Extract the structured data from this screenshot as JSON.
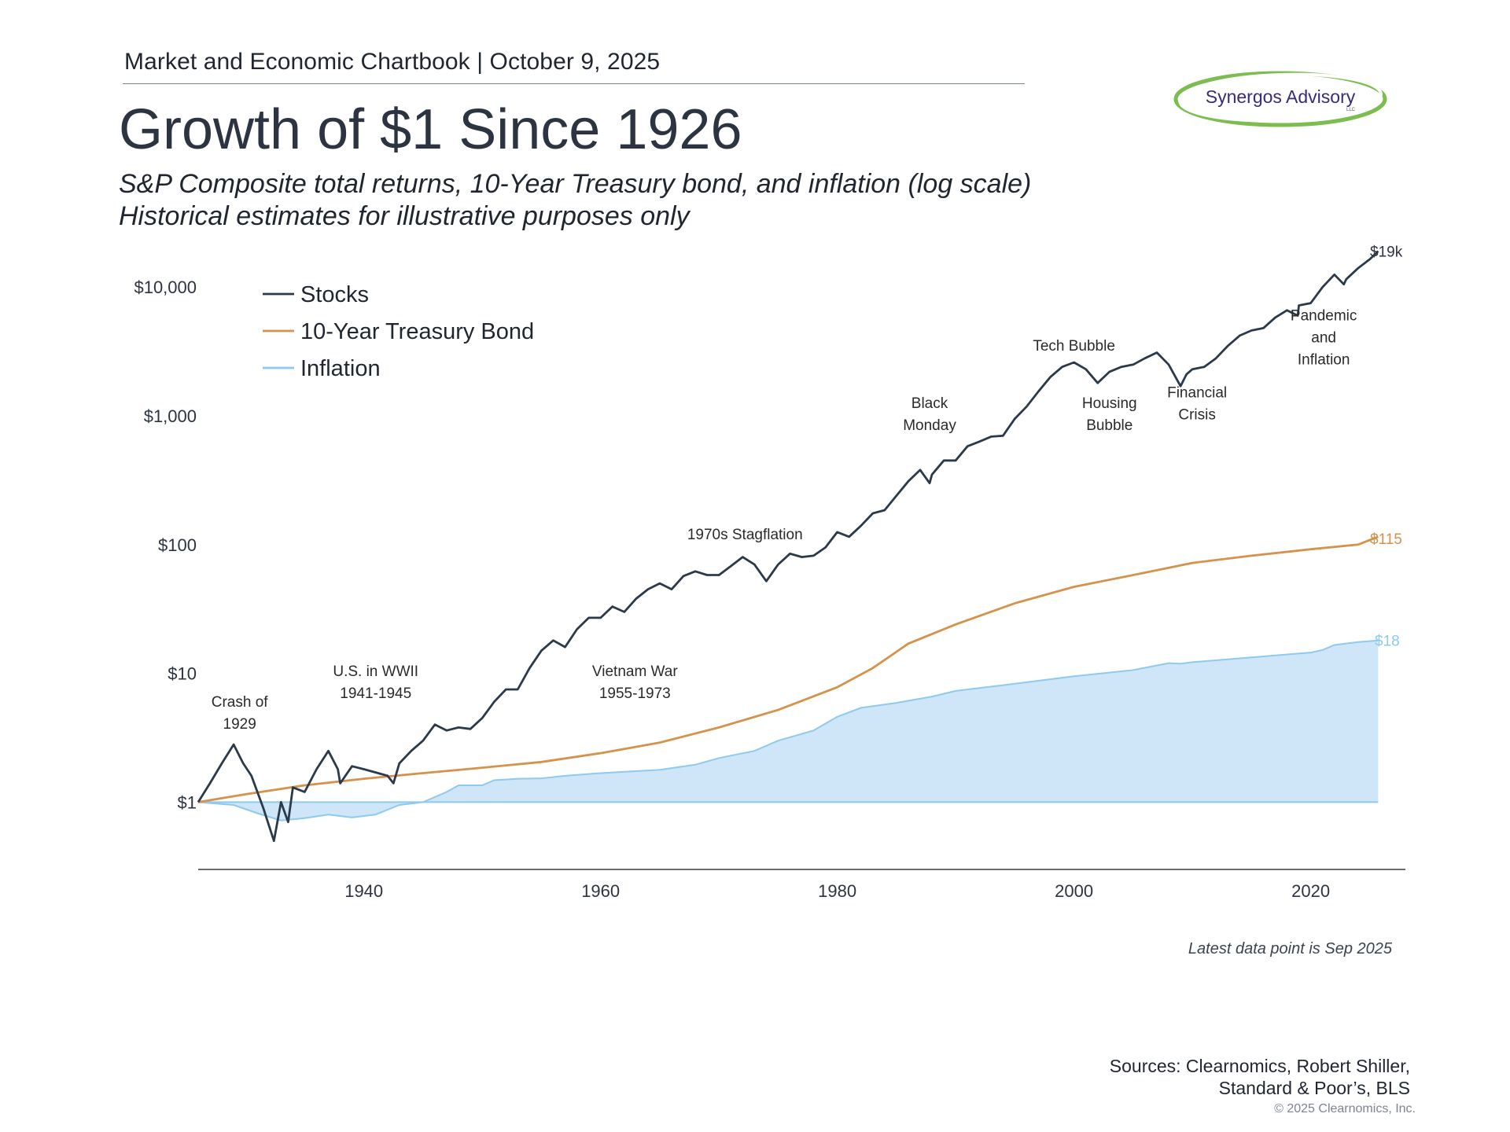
{
  "header": {
    "chartbook": "Market and Economic Chartbook | October 9, 2025",
    "title": "Growth of $1 Since 1926",
    "subtitle_line1": "S&P Composite total returns, 10-Year Treasury bond, and inflation (log scale)",
    "subtitle_line2": "Historical estimates for illustrative purposes only"
  },
  "logo": {
    "text": "Synergos Advisory",
    "suffix": "LLC"
  },
  "footer": {
    "latest": "Latest data point is Sep 2025",
    "sources_line1": "Sources: Clearnomics, Robert Shiller,",
    "sources_line2": "Standard & Poor’s, BLS",
    "copyright": "© 2025 Clearnomics, Inc."
  },
  "colors": {
    "stocks": "#2b3a4a",
    "bond": "#d4924a",
    "inflation_line": "#8ec9ef",
    "inflation_fill": "#cfe6f9",
    "axis": "#3a3a3a",
    "text": "#2b3440"
  },
  "chart_data": {
    "type": "line",
    "scale": "log",
    "xlim": [
      1926,
      2028
    ],
    "ylim": [
      0.3,
      25000
    ],
    "x_ticks": [
      1940,
      1960,
      1980,
      2000,
      2020
    ],
    "y_ticks": [
      {
        "value": 1,
        "label": "$1"
      },
      {
        "value": 10,
        "label": "$10"
      },
      {
        "value": 100,
        "label": "$100"
      },
      {
        "value": 1000,
        "label": "$1,000"
      },
      {
        "value": 10000,
        "label": "$10,000"
      }
    ],
    "legend": {
      "position": "top-left",
      "entries": [
        "Stocks",
        "10-Year Treasury Bond",
        "Inflation"
      ]
    },
    "series": [
      {
        "name": "Stocks",
        "end_label": "$19k",
        "points": [
          [
            1926,
            1
          ],
          [
            1927,
            1.4
          ],
          [
            1928,
            2.0
          ],
          [
            1929,
            2.8
          ],
          [
            1929.8,
            2.0
          ],
          [
            1930.5,
            1.6
          ],
          [
            1931.5,
            0.9
          ],
          [
            1932.4,
            0.5
          ],
          [
            1933,
            1.0
          ],
          [
            1933.6,
            0.7
          ],
          [
            1934,
            1.3
          ],
          [
            1935,
            1.2
          ],
          [
            1936,
            1.8
          ],
          [
            1937,
            2.5
          ],
          [
            1937.8,
            1.8
          ],
          [
            1938,
            1.4
          ],
          [
            1939,
            1.9
          ],
          [
            1940,
            1.8
          ],
          [
            1941,
            1.7
          ],
          [
            1942,
            1.6
          ],
          [
            1942.5,
            1.4
          ],
          [
            1943,
            2.0
          ],
          [
            1944,
            2.5
          ],
          [
            1945,
            3.0
          ],
          [
            1946,
            4.0
          ],
          [
            1947,
            3.6
          ],
          [
            1948,
            3.8
          ],
          [
            1949,
            3.7
          ],
          [
            1950,
            4.5
          ],
          [
            1951,
            6.0
          ],
          [
            1952,
            7.5
          ],
          [
            1953,
            7.5
          ],
          [
            1954,
            11
          ],
          [
            1955,
            15
          ],
          [
            1956,
            18
          ],
          [
            1957,
            16
          ],
          [
            1958,
            22
          ],
          [
            1959,
            27
          ],
          [
            1960,
            27
          ],
          [
            1961,
            33
          ],
          [
            1962,
            30
          ],
          [
            1963,
            38
          ],
          [
            1964,
            45
          ],
          [
            1965,
            50
          ],
          [
            1966,
            45
          ],
          [
            1967,
            57
          ],
          [
            1968,
            62
          ],
          [
            1969,
            58
          ],
          [
            1970,
            58
          ],
          [
            1971,
            68
          ],
          [
            1972,
            80
          ],
          [
            1973,
            70
          ],
          [
            1974,
            52
          ],
          [
            1975,
            70
          ],
          [
            1976,
            85
          ],
          [
            1977,
            80
          ],
          [
            1978,
            82
          ],
          [
            1979,
            95
          ],
          [
            1980,
            125
          ],
          [
            1981,
            115
          ],
          [
            1982,
            140
          ],
          [
            1983,
            175
          ],
          [
            1984,
            185
          ],
          [
            1985,
            240
          ],
          [
            1986,
            310
          ],
          [
            1987,
            380
          ],
          [
            1987.8,
            300
          ],
          [
            1988,
            350
          ],
          [
            1989,
            450
          ],
          [
            1990,
            450
          ],
          [
            1991,
            580
          ],
          [
            1992,
            630
          ],
          [
            1993,
            690
          ],
          [
            1994,
            700
          ],
          [
            1995,
            950
          ],
          [
            1996,
            1180
          ],
          [
            1997,
            1550
          ],
          [
            1998,
            2000
          ],
          [
            1999,
            2400
          ],
          [
            2000,
            2600
          ],
          [
            2001,
            2300
          ],
          [
            2002,
            1800
          ],
          [
            2003,
            2200
          ],
          [
            2004,
            2400
          ],
          [
            2005,
            2500
          ],
          [
            2006,
            2800
          ],
          [
            2007,
            3100
          ],
          [
            2008,
            2500
          ],
          [
            2009,
            1700
          ],
          [
            2009.5,
            2100
          ],
          [
            2010,
            2300
          ],
          [
            2011,
            2400
          ],
          [
            2012,
            2800
          ],
          [
            2013,
            3500
          ],
          [
            2014,
            4200
          ],
          [
            2015,
            4600
          ],
          [
            2016,
            4800
          ],
          [
            2017,
            5800
          ],
          [
            2018,
            6600
          ],
          [
            2018.9,
            6000
          ],
          [
            2019,
            7200
          ],
          [
            2020,
            7500
          ],
          [
            2021,
            10000
          ],
          [
            2022,
            12500
          ],
          [
            2022.8,
            10500
          ],
          [
            2023,
            11500
          ],
          [
            2024,
            14000
          ],
          [
            2025,
            16500
          ],
          [
            2025.7,
            19000
          ]
        ]
      },
      {
        "name": "10-Year Treasury Bond",
        "end_label": "$115",
        "points": [
          [
            1926,
            1
          ],
          [
            1930,
            1.15
          ],
          [
            1935,
            1.35
          ],
          [
            1940,
            1.52
          ],
          [
            1945,
            1.68
          ],
          [
            1950,
            1.85
          ],
          [
            1955,
            2.05
          ],
          [
            1960,
            2.4
          ],
          [
            1965,
            2.9
          ],
          [
            1970,
            3.8
          ],
          [
            1975,
            5.2
          ],
          [
            1980,
            7.8
          ],
          [
            1983,
            11
          ],
          [
            1986,
            17
          ],
          [
            1990,
            24
          ],
          [
            1995,
            35
          ],
          [
            2000,
            47
          ],
          [
            2005,
            58
          ],
          [
            2010,
            72
          ],
          [
            2015,
            82
          ],
          [
            2020,
            92
          ],
          [
            2024,
            100
          ],
          [
            2025.7,
            115
          ]
        ]
      },
      {
        "name": "Inflation",
        "end_label": "$18",
        "points": [
          [
            1926,
            1
          ],
          [
            1929,
            0.95
          ],
          [
            1931,
            0.82
          ],
          [
            1933,
            0.72
          ],
          [
            1935,
            0.75
          ],
          [
            1937,
            0.8
          ],
          [
            1939,
            0.76
          ],
          [
            1941,
            0.8
          ],
          [
            1943,
            0.95
          ],
          [
            1945,
            1.0
          ],
          [
            1947,
            1.2
          ],
          [
            1948,
            1.35
          ],
          [
            1950,
            1.35
          ],
          [
            1951,
            1.48
          ],
          [
            1953,
            1.52
          ],
          [
            1955,
            1.53
          ],
          [
            1957,
            1.6
          ],
          [
            1960,
            1.68
          ],
          [
            1965,
            1.78
          ],
          [
            1968,
            1.95
          ],
          [
            1970,
            2.2
          ],
          [
            1973,
            2.5
          ],
          [
            1975,
            3.0
          ],
          [
            1978,
            3.6
          ],
          [
            1980,
            4.6
          ],
          [
            1982,
            5.4
          ],
          [
            1985,
            5.9
          ],
          [
            1988,
            6.6
          ],
          [
            1990,
            7.3
          ],
          [
            1995,
            8.3
          ],
          [
            2000,
            9.5
          ],
          [
            2005,
            10.6
          ],
          [
            2008,
            12.0
          ],
          [
            2009,
            11.9
          ],
          [
            2010,
            12.2
          ],
          [
            2015,
            13.3
          ],
          [
            2020,
            14.5
          ],
          [
            2021,
            15.2
          ],
          [
            2022,
            16.6
          ],
          [
            2024,
            17.5
          ],
          [
            2025.7,
            18
          ]
        ]
      }
    ],
    "annotations": [
      {
        "lines": [
          "Crash of",
          "1929"
        ],
        "x": 1929.5,
        "y": 5.5
      },
      {
        "lines": [
          "U.S. in WWII",
          "1941-1945"
        ],
        "x": 1941,
        "y": 9.5
      },
      {
        "lines": [
          "Vietnam War",
          "1955-1973"
        ],
        "x": 1962.9,
        "y": 9.5
      },
      {
        "lines": [
          "1970s Stagflation"
        ],
        "x": 1972.2,
        "y": 110
      },
      {
        "lines": [
          "Black",
          "Monday"
        ],
        "x": 1987.8,
        "y": 1150
      },
      {
        "lines": [
          "Tech Bubble"
        ],
        "x": 2000,
        "y": 3200
      },
      {
        "lines": [
          "Housing",
          "Bubble"
        ],
        "x": 2003,
        "y": 1150
      },
      {
        "lines": [
          "Financial",
          "Crisis"
        ],
        "x": 2010.4,
        "y": 1390
      },
      {
        "lines": [
          "Pandemic",
          "and",
          "Inflation"
        ],
        "x": 2021.1,
        "y": 5500
      }
    ]
  }
}
